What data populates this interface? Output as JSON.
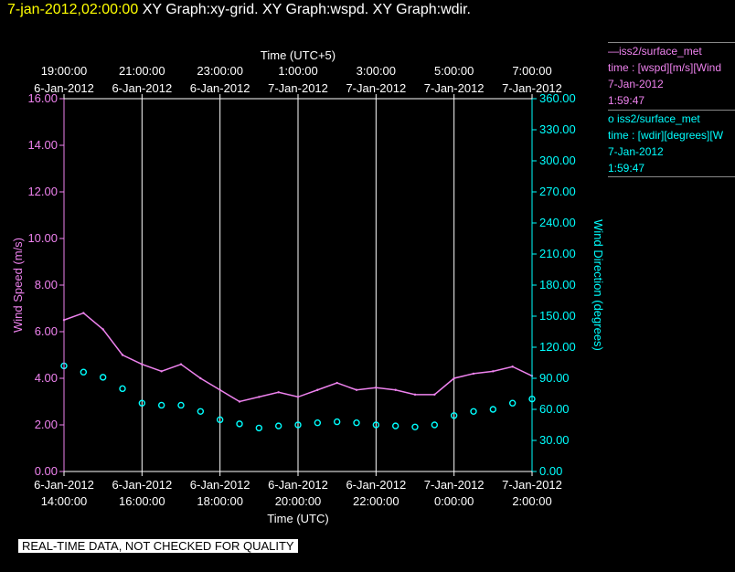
{
  "header": {
    "timestamp": "7-jan-2012,02:00:00",
    "graph_titles": "XY Graph:xy-grid.  XY Graph:wspd.  XY Graph:wdir."
  },
  "chart_data": {
    "type": "scatter",
    "top_axis_title": "Time (UTC+5)",
    "bottom_axis_title": "Time (UTC)",
    "top_ticks": [
      {
        "time": "19:00:00",
        "date": "6-Jan-2012"
      },
      {
        "time": "21:00:00",
        "date": "6-Jan-2012"
      },
      {
        "time": "23:00:00",
        "date": "6-Jan-2012"
      },
      {
        "time": "1:00:00",
        "date": "7-Jan-2012"
      },
      {
        "time": "3:00:00",
        "date": "7-Jan-2012"
      },
      {
        "time": "5:00:00",
        "date": "7-Jan-2012"
      },
      {
        "time": "7:00:00",
        "date": "7-Jan-2012"
      }
    ],
    "bottom_ticks": [
      {
        "date": "6-Jan-2012",
        "time": "14:00:00"
      },
      {
        "date": "6-Jan-2012",
        "time": "16:00:00"
      },
      {
        "date": "6-Jan-2012",
        "time": "18:00:00"
      },
      {
        "date": "6-Jan-2012",
        "time": "20:00:00"
      },
      {
        "date": "6-Jan-2012",
        "time": "22:00:00"
      },
      {
        "date": "7-Jan-2012",
        "time": "0:00:00"
      },
      {
        "date": "7-Jan-2012",
        "time": "2:00:00"
      }
    ],
    "x_range_utc": [
      "6-Jan-2012 14:00:00",
      "7-Jan-2012 02:00:00"
    ],
    "left_axis": {
      "label": "Wind Speed (m/s)",
      "ylim": [
        0,
        16
      ],
      "ticks": [
        "0.00",
        "2.00",
        "4.00",
        "6.00",
        "8.00",
        "10.00",
        "12.00",
        "14.00",
        "16.00"
      ]
    },
    "right_axis": {
      "label": "Wind Direction (degrees)",
      "ylim": [
        0,
        360
      ],
      "ticks": [
        "0.00",
        "30.00",
        "60.00",
        "90.00",
        "120.00",
        "150.00",
        "180.00",
        "210.00",
        "240.00",
        "270.00",
        "300.00",
        "330.00",
        "360.00"
      ]
    },
    "grid": "vertical",
    "colors": {
      "wspd": "#ee82ee",
      "wdir": "#00ffff",
      "grid": "#ffffff"
    },
    "series": [
      {
        "name": "wspd",
        "style": "line",
        "axis": "left",
        "x_hours_utc": [
          "14:00",
          "14:30",
          "15:00",
          "15:30",
          "16:00",
          "16:30",
          "17:00",
          "17:30",
          "18:00",
          "18:30",
          "19:00",
          "19:30",
          "20:00",
          "20:30",
          "21:00",
          "21:30",
          "22:00",
          "22:30",
          "23:00",
          "23:30",
          "0:00",
          "0:30",
          "1:00",
          "1:30",
          "2:00"
        ],
        "values": [
          6.5,
          6.8,
          6.1,
          5.0,
          4.6,
          4.3,
          4.6,
          4.0,
          3.5,
          3.0,
          3.2,
          3.4,
          3.2,
          3.5,
          3.8,
          3.5,
          3.6,
          3.5,
          3.3,
          3.3,
          4.0,
          4.2,
          4.3,
          4.5,
          4.1
        ]
      },
      {
        "name": "wdir",
        "style": "scatter",
        "axis": "right",
        "x_hours_utc": [
          "14:00",
          "14:30",
          "15:00",
          "15:30",
          "16:00",
          "16:30",
          "17:00",
          "17:30",
          "18:00",
          "18:30",
          "19:00",
          "19:30",
          "20:00",
          "20:30",
          "21:00",
          "21:30",
          "22:00",
          "22:30",
          "23:00",
          "23:30",
          "0:00",
          "0:30",
          "1:00",
          "1:30",
          "2:00"
        ],
        "values": [
          102,
          96,
          91,
          80,
          66,
          64,
          64,
          58,
          50,
          46,
          42,
          44,
          45,
          47,
          48,
          47,
          45,
          44,
          43,
          45,
          54,
          58,
          60,
          66,
          70
        ]
      }
    ]
  },
  "legend": [
    {
      "line1": "—iss2/surface_met",
      "line2": "time : [wspd][m/s][Wind",
      "line3": "7-Jan-2012",
      "line4": "1:59:47"
    },
    {
      "line1": "o iss2/surface_met",
      "line2": "time : [wdir][degrees][W",
      "line3": "7-Jan-2012",
      "line4": "1:59:47"
    }
  ],
  "disclaimer": "REAL-TIME DATA, NOT CHECKED FOR QUALITY"
}
